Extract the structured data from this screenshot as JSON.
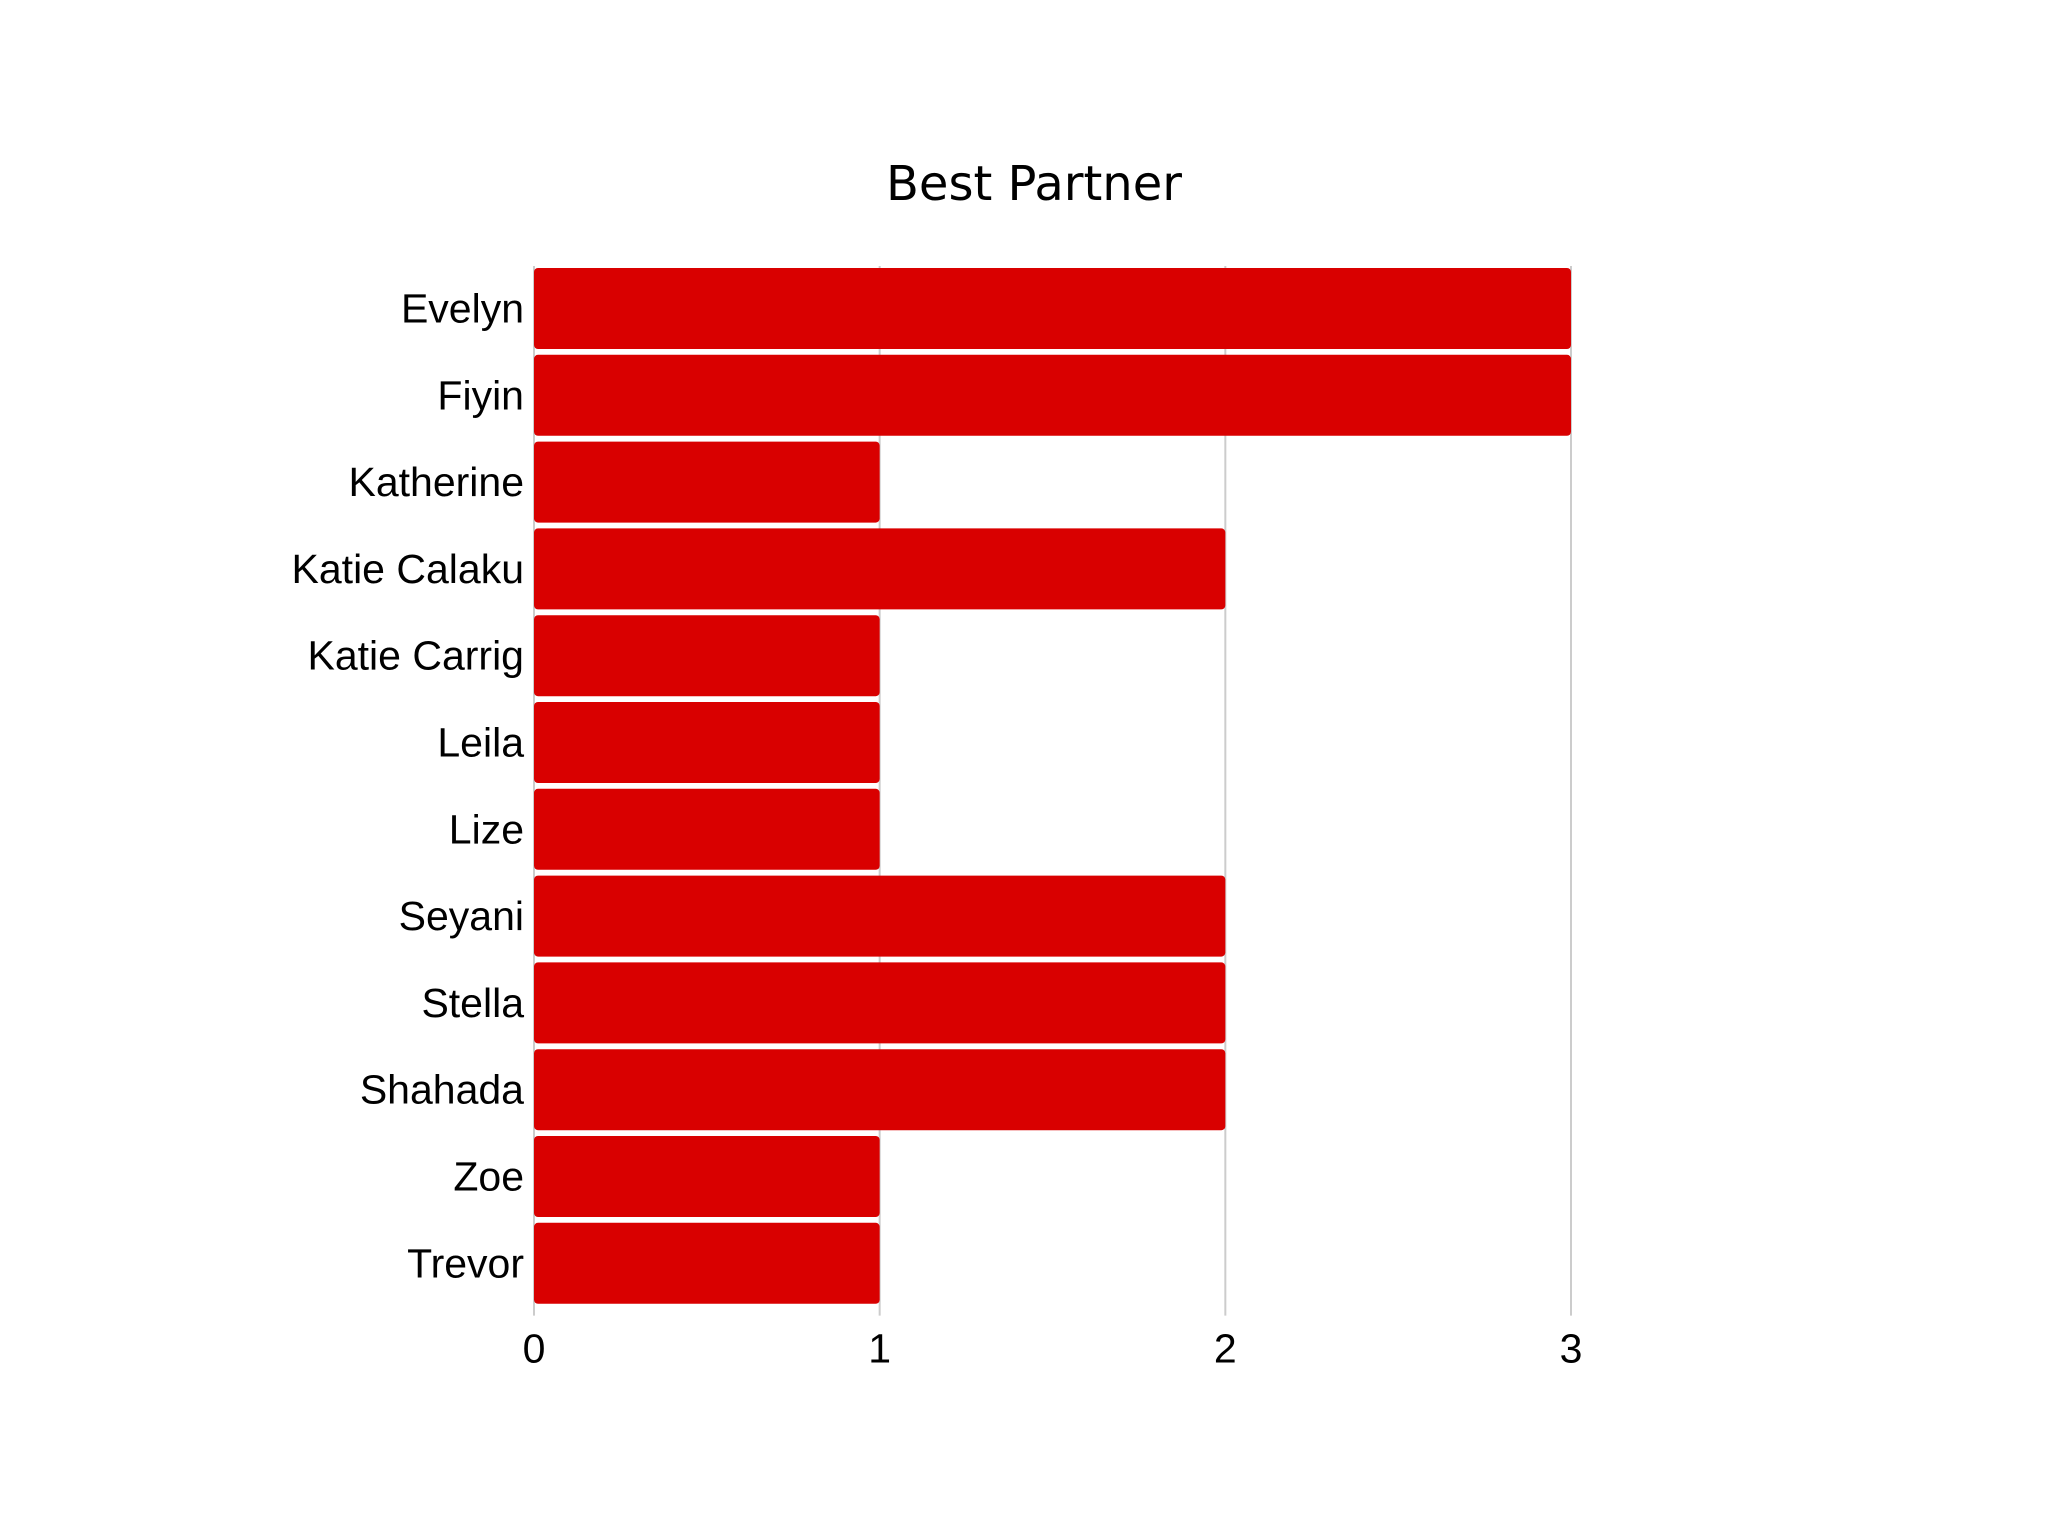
{
  "chart_data": {
    "type": "bar",
    "orientation": "horizontal",
    "title": "Best Partner",
    "xlabel": "",
    "ylabel": "",
    "categories": [
      "Evelyn",
      "Fiyin",
      "Katherine",
      "Katie Calaku",
      "Katie Carrig",
      "Leila",
      "Lize",
      "Seyani",
      "Stella",
      "Shahada",
      "Zoe",
      "Trevor"
    ],
    "series": [
      {
        "values": [
          3,
          3,
          1,
          2,
          1,
          1,
          1,
          2,
          2,
          2,
          1,
          1
        ]
      }
    ],
    "xlim": [
      0,
      3
    ],
    "xticks": [
      "0",
      "1",
      "2",
      "3"
    ],
    "grid": true,
    "legend": "none",
    "bar_color": "#d90000"
  }
}
